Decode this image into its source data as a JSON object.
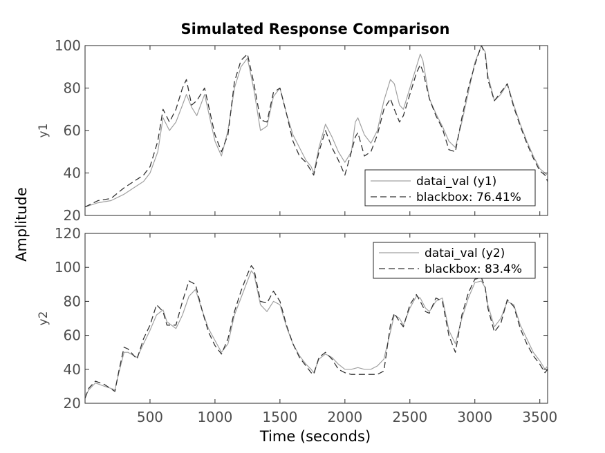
{
  "chart_data": {
    "type": "line",
    "title": "Simulated Response Comparison",
    "xlabel": "Time (seconds)",
    "ylabel": "Amplitude",
    "xlim": [
      0,
      3560
    ],
    "xticks": [
      500,
      1000,
      1500,
      2000,
      2500,
      3000,
      3500
    ],
    "grid": false,
    "colors": {
      "measured": "#a0a0a0",
      "model": "#333333"
    },
    "subplots": [
      {
        "ylabel": "y1",
        "ylim": [
          20,
          100
        ],
        "yticks": [
          20,
          40,
          60,
          80,
          100
        ],
        "legend_position": "bottom-right",
        "series": [
          {
            "name": "datai_val (y1)",
            "style": "solid",
            "x": [
              0,
              100,
              200,
              300,
              400,
              450,
              500,
              560,
              600,
              650,
              700,
              750,
              780,
              820,
              860,
              920,
              1000,
              1050,
              1100,
              1150,
              1200,
              1250,
              1300,
              1350,
              1400,
              1450,
              1500,
              1550,
              1600,
              1650,
              1700,
              1740,
              1760,
              1800,
              1850,
              1900,
              1950,
              2000,
              2050,
              2080,
              2100,
              2150,
              2200,
              2250,
              2300,
              2350,
              2380,
              2420,
              2450,
              2500,
              2550,
              2580,
              2600,
              2650,
              2700,
              2750,
              2800,
              2850,
              2900,
              2950,
              3000,
              3050,
              3080,
              3100,
              3150,
              3200,
              3250,
              3300,
              3350,
              3400,
              3450,
              3500,
              3540,
              3560
            ],
            "y": [
              24,
              26,
              27,
              30,
              34,
              36,
              40,
              50,
              66,
              60,
              64,
              72,
              77,
              71,
              67,
              77,
              55,
              48,
              60,
              80,
              90,
              94,
              79,
              60,
              62,
              76,
              80,
              68,
              58,
              52,
              46,
              43,
              40,
              52,
              63,
              57,
              50,
              45,
              50,
              64,
              66,
              58,
              54,
              60,
              74,
              84,
              82,
              72,
              70,
              80,
              90,
              96,
              93,
              75,
              68,
              62,
              55,
              52,
              64,
              78,
              92,
              100,
              97,
              86,
              74,
              77,
              82,
              72,
              63,
              55,
              48,
              42,
              40,
              39
            ]
          },
          {
            "name": "blackbox: 76.41%",
            "style": "dashed",
            "x": [
              0,
              100,
              200,
              300,
              400,
              450,
              500,
              560,
              600,
              650,
              700,
              750,
              780,
              820,
              860,
              920,
              1000,
              1050,
              1100,
              1150,
              1200,
              1250,
              1300,
              1350,
              1400,
              1450,
              1500,
              1550,
              1600,
              1650,
              1700,
              1740,
              1760,
              1800,
              1850,
              1900,
              1950,
              2000,
              2050,
              2080,
              2100,
              2150,
              2200,
              2250,
              2300,
              2350,
              2380,
              2420,
              2450,
              2500,
              2550,
              2580,
              2600,
              2650,
              2700,
              2750,
              2800,
              2850,
              2900,
              2950,
              3000,
              3050,
              3080,
              3100,
              3150,
              3200,
              3250,
              3300,
              3350,
              3400,
              3450,
              3500,
              3540,
              3560
            ],
            "y": [
              24,
              27,
              28,
              33,
              37,
              39,
              43,
              55,
              70,
              64,
              70,
              80,
              84,
              72,
              74,
              80,
              58,
              50,
              58,
              83,
              93,
              96,
              82,
              65,
              64,
              78,
              80,
              68,
              55,
              48,
              45,
              41,
              39,
              50,
              60,
              52,
              46,
              39,
              50,
              57,
              59,
              48,
              50,
              58,
              70,
              75,
              70,
              64,
              67,
              77,
              87,
              91,
              88,
              75,
              67,
              61,
              51,
              50,
              66,
              80,
              91,
              100,
              96,
              84,
              74,
              78,
              82,
              71,
              62,
              54,
              47,
              41,
              39,
              36
            ]
          }
        ]
      },
      {
        "ylabel": "y2",
        "ylim": [
          20,
          120
        ],
        "yticks": [
          20,
          40,
          60,
          80,
          100,
          120
        ],
        "legend_position": "top-right",
        "series": [
          {
            "name": "datai_val (y2)",
            "style": "solid",
            "x": [
              0,
              30,
              80,
              150,
              230,
              260,
              300,
              330,
              400,
              450,
              500,
              550,
              600,
              630,
              700,
              750,
              800,
              850,
              900,
              950,
              1000,
              1050,
              1100,
              1150,
              1200,
              1250,
              1280,
              1300,
              1350,
              1400,
              1450,
              1500,
              1550,
              1600,
              1650,
              1700,
              1740,
              1760,
              1800,
              1850,
              1900,
              1950,
              2000,
              2050,
              2100,
              2150,
              2200,
              2250,
              2300,
              2350,
              2380,
              2420,
              2450,
              2500,
              2550,
              2580,
              2620,
              2650,
              2700,
              2750,
              2800,
              2850,
              2900,
              2950,
              3000,
              3050,
              3080,
              3100,
              3150,
              3200,
              3250,
              3300,
              3350,
              3400,
              3450,
              3500,
              3540,
              3560
            ],
            "y": [
              24,
              28,
              32,
              30,
              28,
              38,
              50,
              50,
              47,
              55,
              63,
              72,
              75,
              68,
              64,
              72,
              83,
              87,
              75,
              64,
              57,
              50,
              55,
              72,
              82,
              92,
              98,
              96,
              78,
              74,
              80,
              78,
              65,
              55,
              48,
              43,
              40,
              38,
              46,
              49,
              47,
              43,
              40,
              40,
              41,
              40,
              40,
              42,
              46,
              62,
              72,
              70,
              66,
              76,
              83,
              82,
              76,
              74,
              80,
              82,
              63,
              55,
              70,
              82,
              91,
              92,
              88,
              78,
              65,
              70,
              80,
              78,
              66,
              58,
              50,
              45,
              40,
              42
            ]
          },
          {
            "name": "blackbox: 83.4%",
            "style": "dashed",
            "x": [
              0,
              30,
              80,
              150,
              230,
              260,
              300,
              330,
              400,
              450,
              500,
              550,
              600,
              630,
              700,
              750,
              800,
              850,
              900,
              950,
              1000,
              1050,
              1100,
              1150,
              1200,
              1250,
              1280,
              1300,
              1350,
              1400,
              1450,
              1500,
              1550,
              1600,
              1650,
              1700,
              1740,
              1760,
              1800,
              1850,
              1900,
              1950,
              2000,
              2050,
              2100,
              2150,
              2200,
              2250,
              2300,
              2350,
              2380,
              2420,
              2450,
              2500,
              2550,
              2580,
              2620,
              2650,
              2700,
              2750,
              2800,
              2850,
              2900,
              2950,
              3000,
              3050,
              3080,
              3100,
              3150,
              3200,
              3250,
              3300,
              3350,
              3400,
              3450,
              3500,
              3540,
              3560
            ],
            "y": [
              23,
              29,
              33,
              31,
              27,
              39,
              53,
              52,
              46,
              58,
              66,
              78,
              74,
              66,
              66,
              80,
              92,
              90,
              75,
              62,
              54,
              49,
              58,
              74,
              86,
              96,
              101,
              99,
              80,
              79,
              86,
              80,
              66,
              55,
              47,
              42,
              38,
              37,
              47,
              50,
              46,
              40,
              38,
              37,
              37,
              37,
              37,
              37,
              39,
              66,
              73,
              68,
              65,
              78,
              84,
              80,
              74,
              73,
              82,
              80,
              60,
              50,
              72,
              85,
              93,
              94,
              88,
              76,
              62,
              67,
              81,
              77,
              64,
              55,
              48,
              43,
              38,
              40
            ]
          }
        ]
      }
    ]
  }
}
